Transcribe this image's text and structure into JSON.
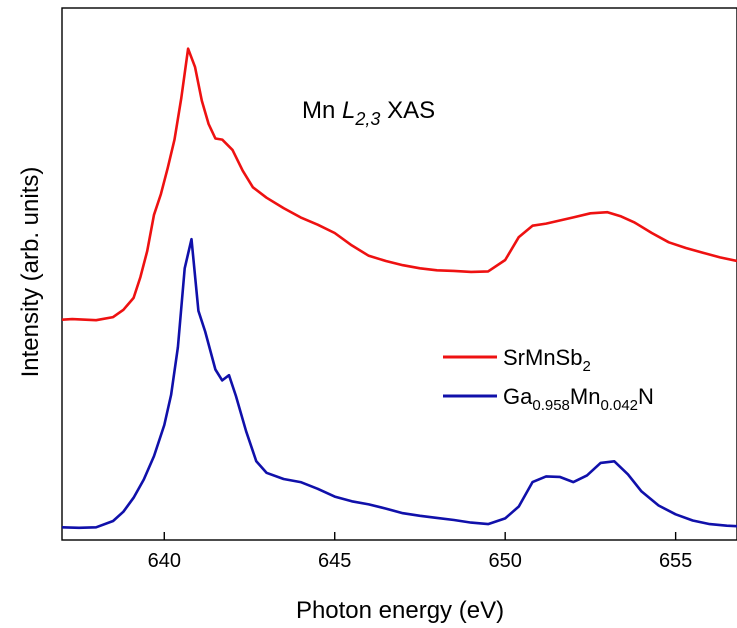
{
  "chart_data": {
    "type": "line",
    "title_parts": {
      "prefix": "Mn ",
      "italic": "L",
      "italic_sub": "2,3",
      "suffix": " XAS"
    },
    "xlabel": "Photon energy (eV)",
    "ylabel": "Intensity (arb. units)",
    "xlim": [
      637.0,
      656.8
    ],
    "ylim": [
      0,
      1
    ],
    "x_ticks": [
      640,
      645,
      650,
      655
    ],
    "x_tick_labels": [
      "640",
      "645",
      "650",
      "655"
    ],
    "y_ticks_shown": false,
    "grid": false,
    "legend_position": "right",
    "series": [
      {
        "name": "SrMnSb2",
        "legend": {
          "base": "SrMnSb",
          "sub1": "2"
        },
        "color": "#ee1111",
        "x": [
          637.0,
          637.3,
          638.0,
          638.5,
          638.8,
          639.1,
          639.3,
          639.5,
          639.7,
          639.9,
          640.1,
          640.3,
          640.5,
          640.7,
          640.9,
          641.1,
          641.3,
          641.5,
          641.7,
          642.0,
          642.3,
          642.6,
          643.0,
          643.5,
          644.0,
          644.5,
          645.0,
          645.5,
          646.0,
          646.5,
          647.0,
          647.5,
          648.0,
          648.5,
          649.0,
          649.5,
          650.0,
          650.4,
          650.8,
          651.2,
          651.6,
          652.0,
          652.5,
          653.0,
          653.4,
          653.8,
          654.3,
          654.8,
          655.3,
          655.8,
          656.3,
          656.8
        ],
        "y": [
          0.413,
          0.414,
          0.412,
          0.418,
          0.432,
          0.455,
          0.495,
          0.545,
          0.615,
          0.655,
          0.705,
          0.76,
          0.84,
          0.935,
          0.9,
          0.835,
          0.79,
          0.762,
          0.76,
          0.74,
          0.7,
          0.668,
          0.648,
          0.628,
          0.61,
          0.596,
          0.58,
          0.556,
          0.536,
          0.526,
          0.518,
          0.512,
          0.508,
          0.507,
          0.505,
          0.506,
          0.528,
          0.572,
          0.594,
          0.598,
          0.604,
          0.61,
          0.618,
          0.62,
          0.612,
          0.6,
          0.58,
          0.562,
          0.551,
          0.542,
          0.533,
          0.526
        ]
      },
      {
        "name": "Ga0.958Mn0.042N",
        "legend": {
          "base": "Ga",
          "sub1": "0.958",
          "mid": "Mn",
          "sub2": "0.042",
          "end": "N"
        },
        "color": "#1010aa",
        "x": [
          637.0,
          637.5,
          638.0,
          638.5,
          638.8,
          639.1,
          639.4,
          639.7,
          640.0,
          640.2,
          640.4,
          640.6,
          640.8,
          641.0,
          641.2,
          641.5,
          641.7,
          641.9,
          642.1,
          642.4,
          642.7,
          643.0,
          643.5,
          644.0,
          644.5,
          645.0,
          645.5,
          646.0,
          646.5,
          647.0,
          647.5,
          648.0,
          648.5,
          649.0,
          649.5,
          650.0,
          650.4,
          650.8,
          651.2,
          651.6,
          652.0,
          652.4,
          652.8,
          653.2,
          653.6,
          654.0,
          654.5,
          655.0,
          655.5,
          656.0,
          656.5,
          656.8
        ],
        "y": [
          0.013,
          0.012,
          0.013,
          0.025,
          0.043,
          0.07,
          0.105,
          0.15,
          0.21,
          0.268,
          0.36,
          0.512,
          0.568,
          0.43,
          0.39,
          0.317,
          0.296,
          0.306,
          0.266,
          0.198,
          0.14,
          0.118,
          0.106,
          0.1,
          0.087,
          0.072,
          0.063,
          0.057,
          0.049,
          0.04,
          0.035,
          0.031,
          0.027,
          0.022,
          0.019,
          0.03,
          0.053,
          0.1,
          0.111,
          0.11,
          0.1,
          0.113,
          0.137,
          0.14,
          0.115,
          0.082,
          0.055,
          0.038,
          0.026,
          0.019,
          0.016,
          0.015
        ]
      }
    ]
  }
}
